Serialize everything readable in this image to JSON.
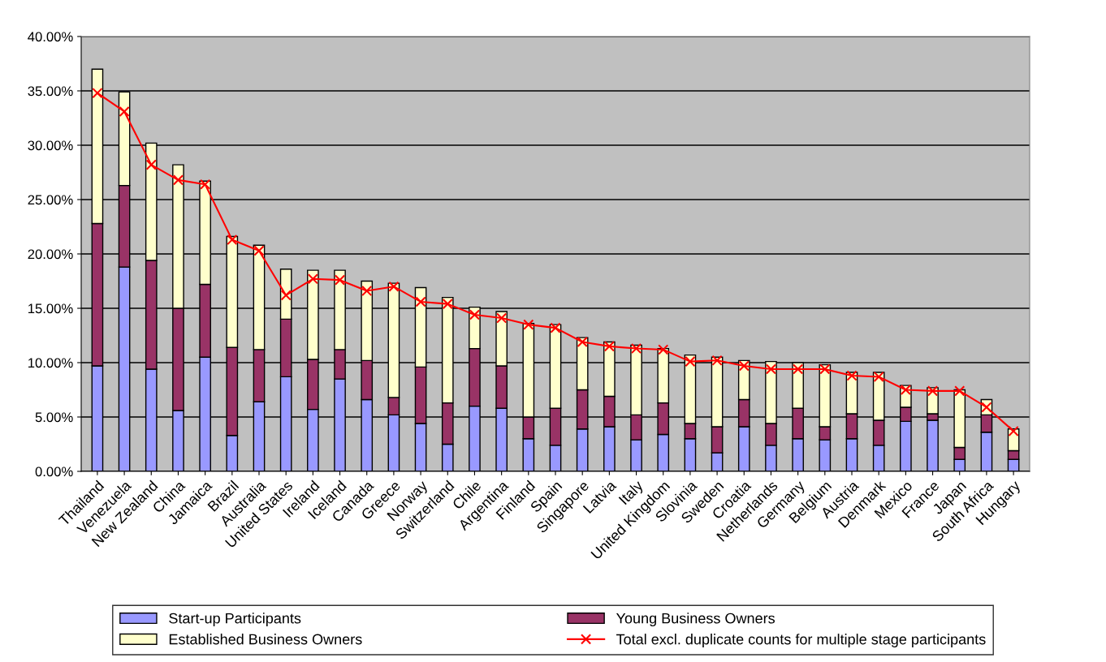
{
  "chart_data": {
    "type": "bar",
    "stacked": true,
    "categories": [
      "Thailand",
      "Venezuela",
      "New Zealand",
      "China",
      "Jamaica",
      "Brazil",
      "Australia",
      "United States",
      "Ireland",
      "Iceland",
      "Canada",
      "Greece",
      "Norway",
      "Switzerland",
      "Chile",
      "Argentina",
      "Finland",
      "Spain",
      "Singapore",
      "Latvia",
      "Italy",
      "United Kingdom",
      "Slovinia",
      "Sweden",
      "Croatia",
      "Netherlands",
      "Germany",
      "Belgium",
      "Austria",
      "Denmark",
      "Mexico",
      "France",
      "Japan",
      "South Africa",
      "Hungary"
    ],
    "series": [
      {
        "name": "Start-up Participants",
        "color": "#9999ff",
        "values": [
          9.7,
          18.8,
          9.4,
          5.6,
          10.5,
          3.3,
          6.4,
          8.7,
          5.7,
          8.5,
          6.6,
          5.2,
          4.4,
          2.5,
          6.0,
          5.8,
          3.0,
          2.4,
          3.9,
          4.1,
          2.9,
          3.4,
          3.0,
          1.7,
          4.1,
          2.4,
          3.0,
          2.9,
          3.0,
          2.4,
          4.6,
          4.7,
          1.1,
          3.6,
          1.1
        ]
      },
      {
        "name": "Young Business Owners",
        "color": "#993366",
        "values": [
          13.1,
          7.5,
          10.0,
          9.4,
          6.7,
          8.1,
          4.8,
          5.3,
          4.6,
          2.7,
          3.6,
          1.6,
          5.2,
          3.8,
          5.3,
          3.9,
          2.0,
          3.4,
          3.6,
          2.8,
          2.3,
          2.9,
          1.4,
          2.4,
          2.5,
          2.0,
          2.8,
          1.2,
          2.3,
          2.3,
          1.3,
          0.6,
          1.1,
          1.6,
          0.8
        ]
      },
      {
        "name": "Established Business Owners",
        "color": "#ffffcc",
        "values": [
          14.2,
          8.6,
          10.8,
          13.2,
          9.5,
          10.2,
          9.6,
          4.6,
          8.2,
          7.3,
          7.3,
          10.5,
          7.3,
          9.7,
          3.8,
          5.0,
          8.6,
          7.7,
          4.8,
          5.0,
          6.4,
          5.0,
          6.3,
          6.4,
          3.6,
          5.7,
          4.2,
          5.7,
          3.8,
          4.4,
          2.0,
          2.4,
          5.3,
          1.4,
          2.0
        ]
      },
      {
        "name": "Total excl. duplicate counts for multiple stage participants",
        "type": "line",
        "color": "#ff0000",
        "marker": "cross",
        "values": [
          34.8,
          33.1,
          28.2,
          26.8,
          26.4,
          21.3,
          20.3,
          16.2,
          17.7,
          17.6,
          16.6,
          17.0,
          15.6,
          15.4,
          14.4,
          14.1,
          13.5,
          13.2,
          11.9,
          11.5,
          11.3,
          11.2,
          10.1,
          10.2,
          9.7,
          9.4,
          9.4,
          9.4,
          8.8,
          8.7,
          7.5,
          7.4,
          7.4,
          5.9,
          3.7
        ]
      }
    ],
    "ylim": [
      0,
      40
    ],
    "yticks": [
      {
        "value": 0,
        "label": "0.00%"
      },
      {
        "value": 5,
        "label": "5.00%"
      },
      {
        "value": 10,
        "label": "10.00%"
      },
      {
        "value": 15,
        "label": "15.00%"
      },
      {
        "value": 20,
        "label": "20.00%"
      },
      {
        "value": 25,
        "label": "25.00%"
      },
      {
        "value": 30,
        "label": "30.00%"
      },
      {
        "value": 35,
        "label": "35.00%"
      },
      {
        "value": 40,
        "label": "40.00%"
      }
    ],
    "grid": "y",
    "legend": "bottom"
  }
}
